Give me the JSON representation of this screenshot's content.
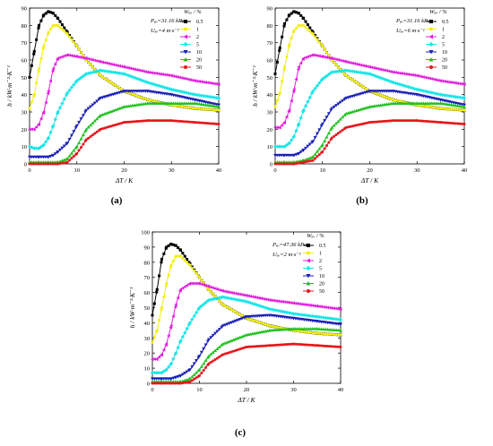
{
  "figure": {
    "panels": [
      {
        "label": "(a)",
        "chart_data": {
          "type": "line",
          "xlabel": "ΔT / K",
          "ylabel": "h / kW·m⁻²·K⁻¹",
          "xlim": [
            0,
            40
          ],
          "ylim": [
            0,
            90
          ],
          "xticks": [
            0,
            10,
            20,
            30,
            40
          ],
          "yticks": [
            0,
            10,
            20,
            30,
            40,
            50,
            60,
            70,
            80,
            90
          ],
          "grid": false,
          "legend_position": "top-right",
          "legend_title": "Wₑₒ / %",
          "annotations": [
            "Pₑₒ=31.16 kPa",
            "Uₑₒ=4 m·s⁻¹"
          ],
          "series": [
            {
              "name": "0.5",
              "color": "#000000",
              "marker": "square",
              "x": [
                0,
                1,
                2,
                3,
                4,
                5,
                6,
                8,
                10,
                12,
                15,
                20,
                25,
                30,
                35,
                40
              ],
              "y": [
                50,
                65,
                80,
                86,
                88,
                87,
                84,
                76,
                68,
                60,
                51,
                42,
                37,
                34,
                32,
                31
              ]
            },
            {
              "name": "1",
              "color": "#f2ef0c",
              "marker": "circle",
              "x": [
                0,
                1,
                2,
                3,
                4,
                5,
                6,
                8,
                10,
                12,
                15,
                20,
                25,
                30,
                35,
                40
              ],
              "y": [
                32,
                40,
                55,
                68,
                76,
                80,
                80,
                75,
                68,
                60,
                51,
                42,
                37,
                34,
                32,
                31
              ]
            },
            {
              "name": "2",
              "color": "#e21de0",
              "marker": "triangle-left",
              "x": [
                0,
                1,
                2,
                3,
                4,
                5,
                6,
                8,
                10,
                12,
                15,
                20,
                25,
                30,
                35,
                40
              ],
              "y": [
                20,
                20,
                23,
                30,
                42,
                55,
                61,
                63,
                62,
                61,
                59,
                56,
                53,
                51,
                48,
                46
              ]
            },
            {
              "name": "5",
              "color": "#16e6e8",
              "marker": "diamond",
              "x": [
                0,
                1,
                2,
                3,
                4,
                5,
                6,
                8,
                10,
                12,
                15,
                20,
                25,
                30,
                35,
                40
              ],
              "y": [
                10,
                9,
                9,
                11,
                15,
                22,
                30,
                41,
                48,
                52,
                54,
                52,
                47,
                43,
                40,
                38
              ]
            },
            {
              "name": "10",
              "color": "#1a1fb8",
              "marker": "triangle-down",
              "x": [
                0,
                2,
                4,
                5,
                6,
                8,
                10,
                12,
                15,
                20,
                25,
                30,
                35,
                40
              ],
              "y": [
                4,
                4,
                4,
                5,
                7,
                12,
                22,
                31,
                38,
                42,
                42,
                40,
                37,
                34
              ]
            },
            {
              "name": "20",
              "color": "#1fc21f",
              "marker": "triangle-up",
              "x": [
                0,
                2,
                4,
                6,
                8,
                10,
                12,
                15,
                20,
                25,
                30,
                35,
                40
              ],
              "y": [
                1,
                1,
                1,
                1,
                3,
                10,
                20,
                28,
                33,
                35,
                35,
                35,
                33
              ]
            },
            {
              "name": "50",
              "color": "#e8141b",
              "marker": "circle",
              "x": [
                0,
                2,
                4,
                6,
                8,
                10,
                12,
                15,
                20,
                25,
                30,
                35,
                40
              ],
              "y": [
                0,
                0,
                0,
                0,
                1,
                6,
                14,
                20,
                24,
                25,
                25,
                24,
                23
              ]
            }
          ]
        }
      },
      {
        "label": "(b)",
        "chart_data": {
          "type": "line",
          "xlabel": "ΔT / K",
          "ylabel": "h / kW·m⁻²·K⁻¹",
          "xlim": [
            0,
            40
          ],
          "ylim": [
            0,
            90
          ],
          "xticks": [
            0,
            10,
            20,
            30,
            40
          ],
          "yticks": [
            0,
            10,
            20,
            30,
            40,
            50,
            60,
            70,
            80,
            90
          ],
          "grid": false,
          "legend_position": "top-right",
          "legend_title": "Wₑₒ / %",
          "annotations": [
            "Pₑₒ=31.16 kPa",
            "Uₑₒ=6 m·s⁻¹"
          ],
          "series": [
            {
              "name": "0.5",
              "color": "#000000",
              "marker": "square",
              "x": [
                0,
                1,
                2,
                3,
                4,
                5,
                6,
                8,
                10,
                12,
                15,
                20,
                25,
                30,
                35,
                40
              ],
              "y": [
                52,
                67,
                81,
                86,
                88,
                87,
                84,
                76,
                68,
                60,
                51,
                42,
                37,
                34,
                32,
                31
              ]
            },
            {
              "name": "1",
              "color": "#f2ef0c",
              "marker": "circle",
              "x": [
                0,
                1,
                2,
                3,
                4,
                5,
                6,
                8,
                10,
                12,
                15,
                20,
                25,
                30,
                35,
                40
              ],
              "y": [
                33,
                41,
                56,
                69,
                77,
                80,
                80,
                75,
                68,
                60,
                51,
                42,
                37,
                34,
                32,
                31
              ]
            },
            {
              "name": "2",
              "color": "#e21de0",
              "marker": "triangle-left",
              "x": [
                0,
                1,
                2,
                3,
                4,
                5,
                6,
                8,
                10,
                12,
                15,
                20,
                25,
                30,
                35,
                40
              ],
              "y": [
                21,
                21,
                24,
                31,
                43,
                56,
                61,
                63,
                62,
                61,
                59,
                56,
                53,
                51,
                48,
                46
              ]
            },
            {
              "name": "5",
              "color": "#16e6e8",
              "marker": "diamond",
              "x": [
                0,
                1,
                2,
                3,
                4,
                5,
                6,
                8,
                10,
                12,
                15,
                20,
                25,
                30,
                35,
                40
              ],
              "y": [
                10,
                10,
                10,
                12,
                16,
                23,
                31,
                42,
                49,
                53,
                54,
                52,
                47,
                43,
                40,
                38
              ]
            },
            {
              "name": "10",
              "color": "#1a1fb8",
              "marker": "triangle-down",
              "x": [
                0,
                2,
                4,
                5,
                6,
                8,
                10,
                12,
                15,
                20,
                25,
                30,
                35,
                40
              ],
              "y": [
                5,
                5,
                5,
                6,
                8,
                13,
                23,
                32,
                38,
                42,
                42,
                40,
                37,
                34
              ]
            },
            {
              "name": "20",
              "color": "#1fc21f",
              "marker": "triangle-up",
              "x": [
                0,
                2,
                4,
                6,
                8,
                10,
                12,
                15,
                20,
                25,
                30,
                35,
                40
              ],
              "y": [
                1,
                1,
                1,
                2,
                4,
                11,
                21,
                29,
                33,
                35,
                35,
                35,
                33
              ]
            },
            {
              "name": "50",
              "color": "#e8141b",
              "marker": "circle",
              "x": [
                0,
                2,
                4,
                6,
                8,
                10,
                12,
                15,
                20,
                25,
                30,
                35,
                40
              ],
              "y": [
                0,
                0,
                0,
                1,
                2,
                7,
                15,
                21,
                24,
                25,
                25,
                24,
                23
              ]
            }
          ]
        }
      },
      {
        "label": "(c)",
        "chart_data": {
          "type": "line",
          "xlabel": "ΔT / K",
          "ylabel": "h / kW·m⁻²·K⁻¹",
          "xlim": [
            0,
            40
          ],
          "ylim": [
            0,
            100
          ],
          "xticks": [
            0,
            10,
            20,
            30,
            40
          ],
          "yticks": [
            0,
            10,
            20,
            30,
            40,
            50,
            60,
            70,
            80,
            90,
            100
          ],
          "grid": false,
          "legend_position": "top-right",
          "legend_title": "Wₑₒ / %",
          "annotations": [
            "Pₑₒ=47.36 kPa",
            "Uₑₒ=2 m·s⁻¹"
          ],
          "series": [
            {
              "name": "0.5",
              "color": "#000000",
              "marker": "square",
              "x": [
                0,
                1,
                2,
                3,
                4,
                5,
                6,
                8,
                10,
                12,
                15,
                20,
                25,
                30,
                35,
                40
              ],
              "y": [
                45,
                62,
                82,
                90,
                92,
                91,
                88,
                79,
                70,
                62,
                52,
                43,
                38,
                35,
                33,
                32
              ]
            },
            {
              "name": "1",
              "color": "#f2ef0c",
              "marker": "circle",
              "x": [
                0,
                1,
                2,
                3,
                4,
                5,
                6,
                8,
                10,
                12,
                15,
                20,
                25,
                30,
                35,
                40
              ],
              "y": [
                27,
                35,
                50,
                66,
                78,
                84,
                84,
                78,
                70,
                62,
                52,
                43,
                38,
                35,
                33,
                32
              ]
            },
            {
              "name": "2",
              "color": "#e21de0",
              "marker": "triangle-left",
              "x": [
                0,
                1,
                2,
                3,
                4,
                5,
                6,
                8,
                10,
                12,
                15,
                20,
                25,
                30,
                35,
                40
              ],
              "y": [
                16,
                16,
                19,
                26,
                38,
                52,
                62,
                66,
                66,
                64,
                61,
                58,
                55,
                53,
                51,
                49
              ]
            },
            {
              "name": "5",
              "color": "#16e6e8",
              "marker": "diamond",
              "x": [
                0,
                1,
                2,
                3,
                4,
                5,
                6,
                8,
                10,
                12,
                15,
                20,
                25,
                30,
                35,
                40
              ],
              "y": [
                7,
                7,
                7,
                9,
                13,
                20,
                28,
                40,
                50,
                55,
                57,
                54,
                49,
                46,
                44,
                42
              ]
            },
            {
              "name": "10",
              "color": "#1a1fb8",
              "marker": "triangle-down",
              "x": [
                0,
                2,
                4,
                5,
                6,
                8,
                10,
                12,
                15,
                20,
                25,
                30,
                35,
                40
              ],
              "y": [
                3,
                3,
                3,
                4,
                5,
                9,
                18,
                29,
                38,
                44,
                45,
                43,
                41,
                39
              ]
            },
            {
              "name": "20",
              "color": "#1fc21f",
              "marker": "triangle-up",
              "x": [
                0,
                2,
                4,
                6,
                8,
                10,
                12,
                15,
                20,
                25,
                30,
                35,
                40
              ],
              "y": [
                1,
                1,
                1,
                1,
                3,
                9,
                18,
                26,
                32,
                35,
                36,
                36,
                35
              ]
            },
            {
              "name": "50",
              "color": "#e8141b",
              "marker": "circle",
              "x": [
                0,
                2,
                4,
                6,
                8,
                10,
                12,
                15,
                20,
                25,
                30,
                35,
                40
              ],
              "y": [
                0,
                0,
                0,
                0,
                1,
                5,
                13,
                19,
                24,
                25,
                26,
                25,
                24
              ]
            }
          ]
        }
      }
    ]
  }
}
